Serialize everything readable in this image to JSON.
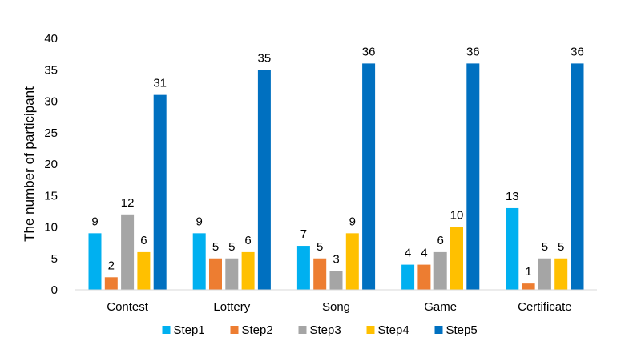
{
  "chart_data": {
    "type": "bar",
    "title": "",
    "xlabel": "",
    "ylabel": "The number of participant",
    "ylim": [
      0,
      40
    ],
    "yticks": [
      0,
      5,
      10,
      15,
      20,
      25,
      30,
      35,
      40
    ],
    "grid": false,
    "legend_position": "bottom",
    "categories": [
      "Contest",
      "Lottery",
      "Song",
      "Game",
      "Certificate"
    ],
    "series": [
      {
        "name": "Step1",
        "color": "#00B0F0",
        "values": [
          9,
          9,
          7,
          4,
          13
        ]
      },
      {
        "name": "Step2",
        "color": "#ED7D31",
        "values": [
          2,
          5,
          5,
          4,
          1
        ]
      },
      {
        "name": "Step3",
        "color": "#A5A5A5",
        "values": [
          12,
          5,
          3,
          6,
          5
        ]
      },
      {
        "name": "Step4",
        "color": "#FFC000",
        "values": [
          6,
          6,
          9,
          10,
          5
        ]
      },
      {
        "name": "Step5",
        "color": "#0070C0",
        "values": [
          31,
          35,
          36,
          36,
          36
        ]
      }
    ]
  }
}
